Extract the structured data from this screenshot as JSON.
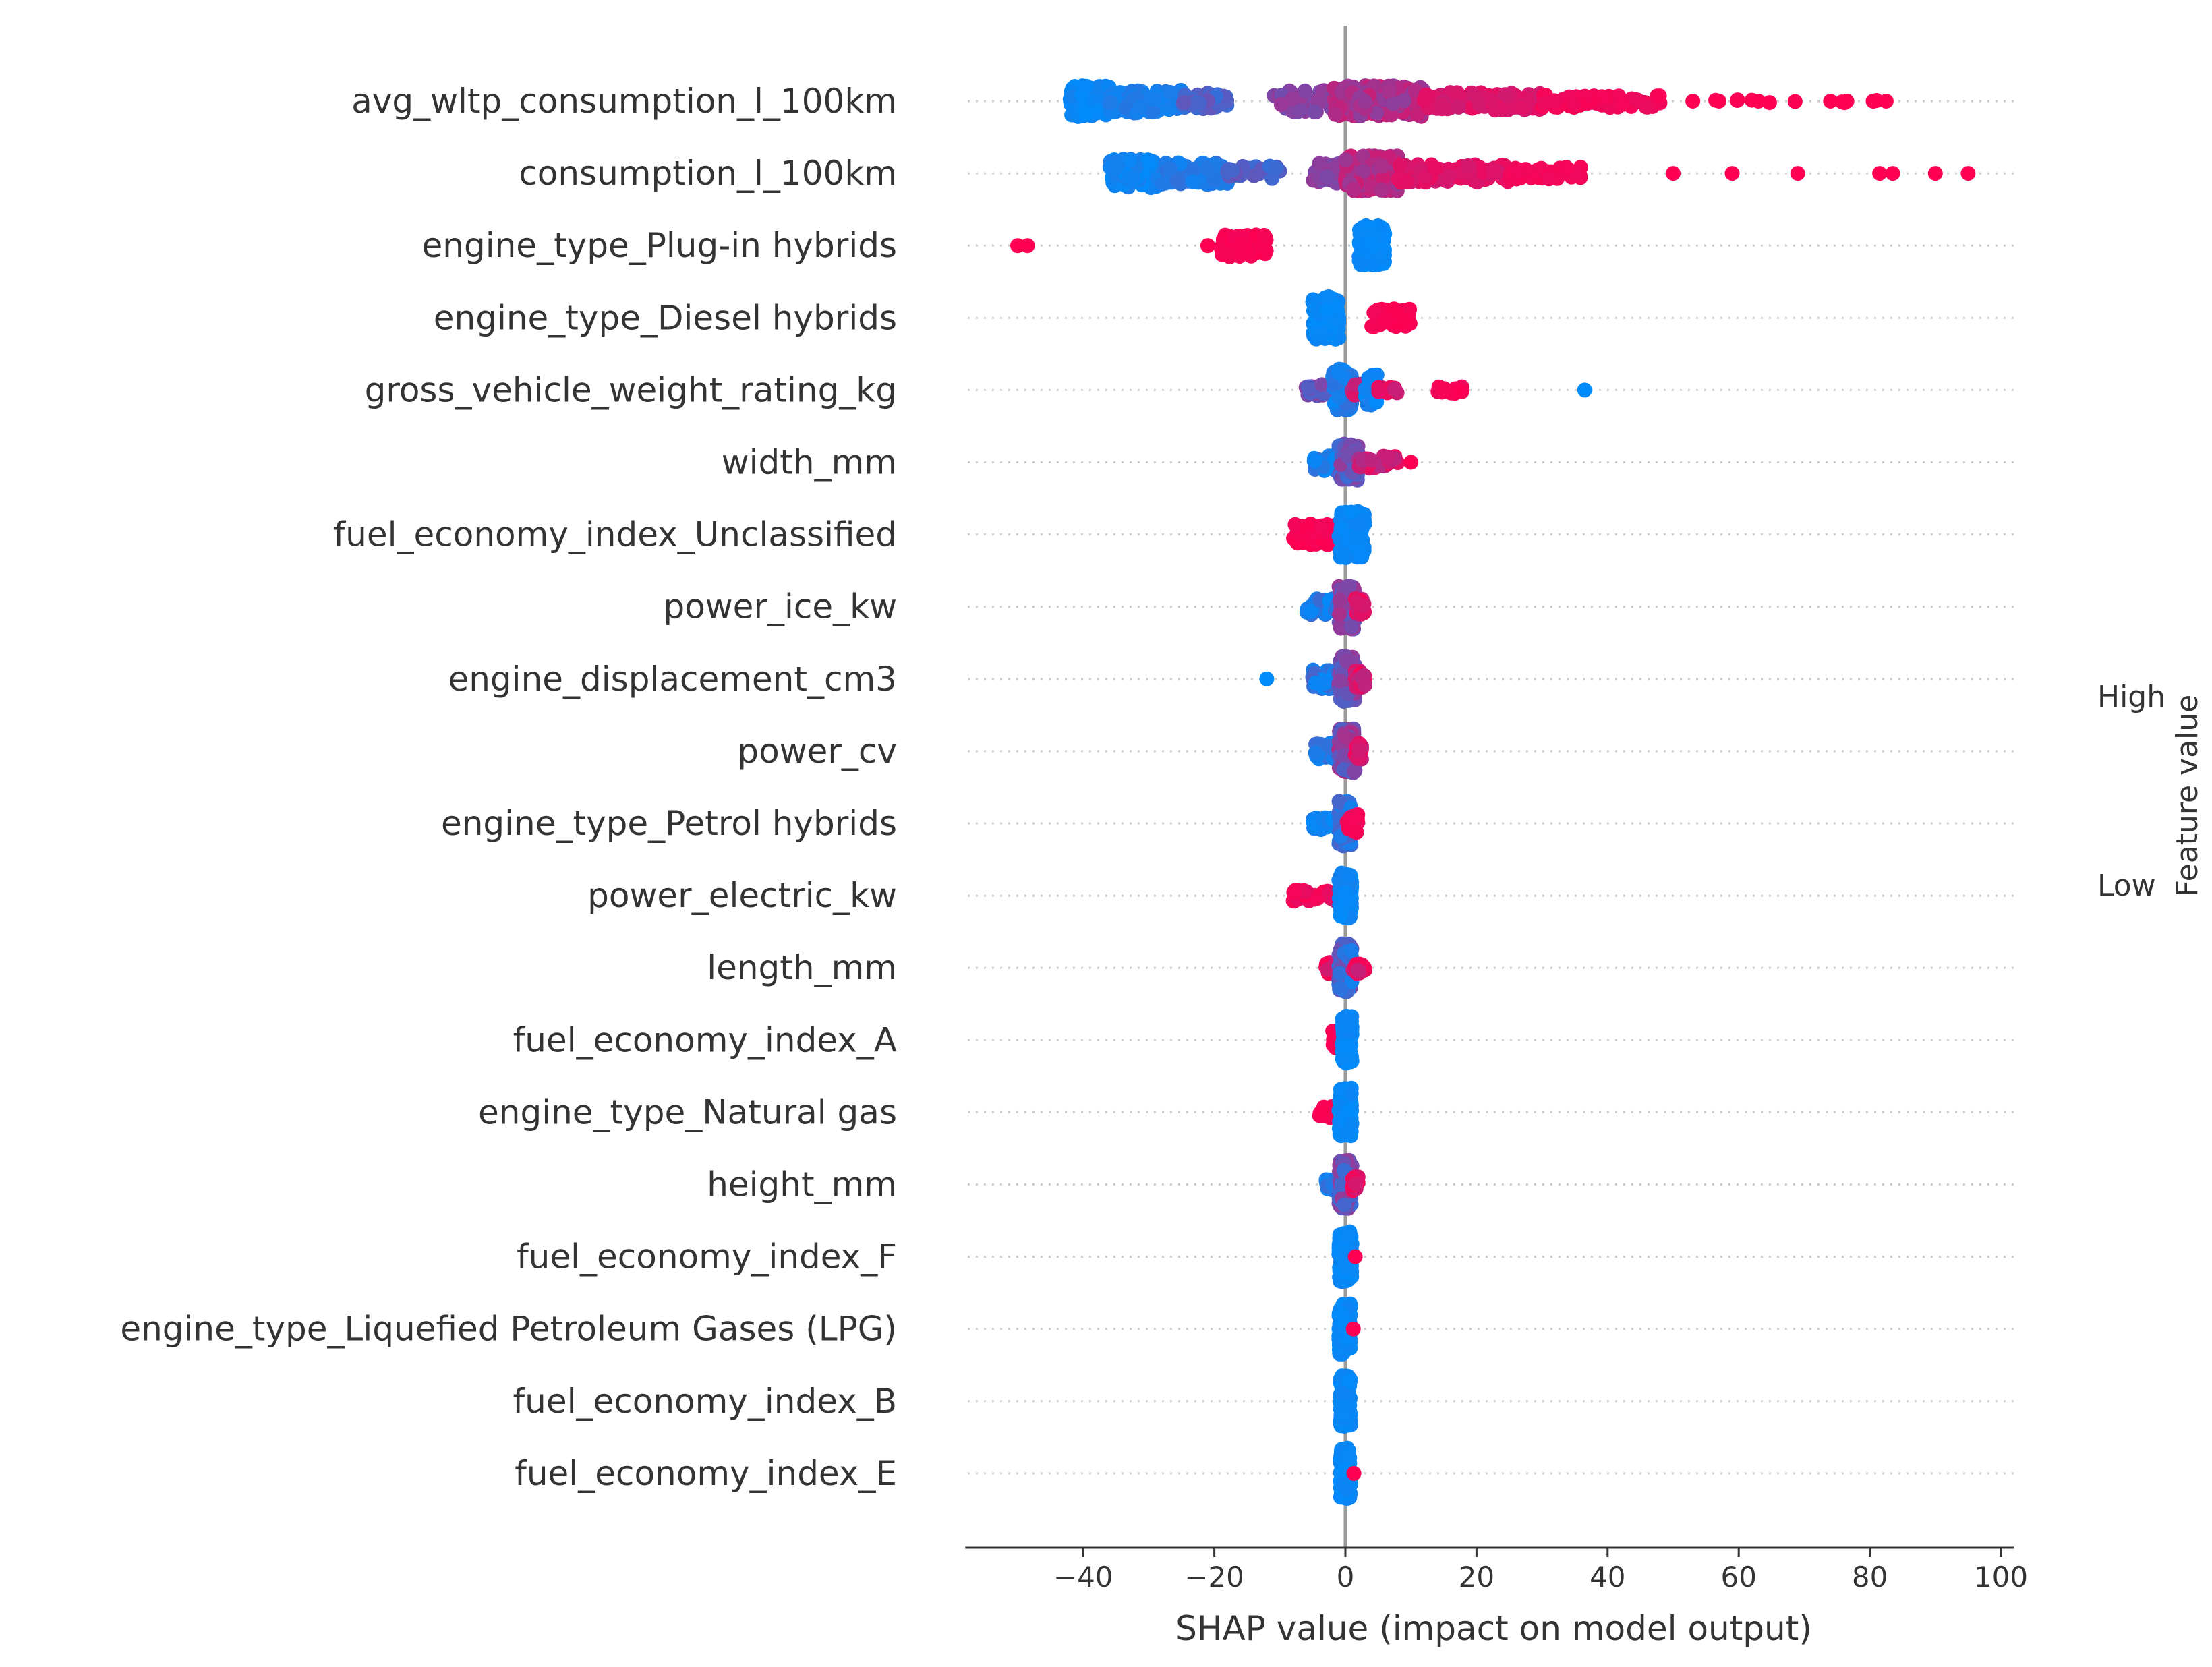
{
  "chart_data": {
    "type": "scatter",
    "subtype": "shap-beeswarm",
    "title": "",
    "xlabel": "SHAP value (impact on model output)",
    "ylabel": "",
    "xlim": [
      -58,
      102
    ],
    "xticks": [
      -40,
      -20,
      0,
      20,
      40,
      60,
      80,
      100
    ],
    "grid": true,
    "colorbar": {
      "label": "Feature value",
      "high_label": "High",
      "low_label": "Low",
      "low_color": "#008bfb",
      "high_color": "#ff0052"
    },
    "features": [
      {
        "name": "avg_wltp_consumption_l_100km",
        "clusters": [
          {
            "from": -42,
            "to": -36,
            "v": [
              0.0,
              0.08
            ],
            "n": 120,
            "spread": 0.55
          },
          {
            "from": -36,
            "to": -25,
            "v": [
              0.05,
              0.15
            ],
            "n": 110,
            "spread": 0.42
          },
          {
            "from": -25,
            "to": -18,
            "v": [
              0.2,
              0.4
            ],
            "n": 45,
            "spread": 0.28
          },
          {
            "from": -11,
            "to": -2,
            "v": [
              0.45,
              0.6
            ],
            "n": 55,
            "spread": 0.38
          },
          {
            "from": -2,
            "to": 12,
            "v": [
              0.55,
              0.8
            ],
            "n": 210,
            "spread": 0.55
          },
          {
            "from": 12,
            "to": 30,
            "v": [
              0.8,
              0.92
            ],
            "n": 120,
            "spread": 0.32
          },
          {
            "from": 30,
            "to": 48,
            "v": [
              0.92,
              0.98
            ],
            "n": 70,
            "spread": 0.22
          },
          {
            "from": 50,
            "to": 84,
            "v": [
              0.98,
              1.0
            ],
            "n": 10,
            "spread": 0.06
          }
        ],
        "points": [
          {
            "x": 53,
            "v": 1
          },
          {
            "x": 57,
            "v": 1
          },
          {
            "x": 63,
            "v": 1
          },
          {
            "x": 74,
            "v": 1
          },
          {
            "x": 76.5,
            "v": 1
          },
          {
            "x": 80.5,
            "v": 1
          },
          {
            "x": 82.5,
            "v": 1
          }
        ]
      },
      {
        "name": "consumption_l_100km",
        "clusters": [
          {
            "from": -36,
            "to": -28,
            "v": [
              0.0,
              0.1
            ],
            "n": 110,
            "spread": 0.5
          },
          {
            "from": -28,
            "to": -18,
            "v": [
              0.05,
              0.2
            ],
            "n": 90,
            "spread": 0.38
          },
          {
            "from": -18,
            "to": -10,
            "v": [
              0.2,
              0.4
            ],
            "n": 35,
            "spread": 0.26
          },
          {
            "from": -5,
            "to": 0,
            "v": [
              0.45,
              0.6
            ],
            "n": 40,
            "spread": 0.35
          },
          {
            "from": 0,
            "to": 8,
            "v": [
              0.6,
              0.82
            ],
            "n": 220,
            "spread": 0.62
          },
          {
            "from": 8,
            "to": 25,
            "v": [
              0.82,
              0.93
            ],
            "n": 110,
            "spread": 0.32
          },
          {
            "from": 25,
            "to": 36,
            "v": [
              0.93,
              0.98
            ],
            "n": 50,
            "spread": 0.22
          }
        ],
        "points": [
          {
            "x": 50,
            "v": 1
          },
          {
            "x": 59,
            "v": 1
          },
          {
            "x": 69,
            "v": 1
          },
          {
            "x": 81.5,
            "v": 1
          },
          {
            "x": 83.5,
            "v": 1
          },
          {
            "x": 90,
            "v": 1
          },
          {
            "x": 95,
            "v": 1
          }
        ]
      },
      {
        "name": "engine_type_Plug-in hybrids",
        "clusters": [
          {
            "from": -19,
            "to": -12,
            "v": [
              0.96,
              1.0
            ],
            "n": 70,
            "spread": 0.4
          },
          {
            "from": 2,
            "to": 6,
            "v": [
              0.0,
              0.04
            ],
            "n": 150,
            "spread": 0.7
          }
        ],
        "points": [
          {
            "x": -50,
            "v": 1
          },
          {
            "x": -48.5,
            "v": 1
          },
          {
            "x": -21,
            "v": 1
          }
        ]
      },
      {
        "name": "engine_type_Diesel hybrids",
        "clusters": [
          {
            "from": -5,
            "to": -1,
            "v": [
              0.0,
              0.05
            ],
            "n": 150,
            "spread": 0.75
          },
          {
            "from": 4,
            "to": 10,
            "v": [
              0.95,
              1.0
            ],
            "n": 60,
            "spread": 0.32
          }
        ],
        "points": []
      },
      {
        "name": "gross_vehicle_weight_rating_kg",
        "clusters": [
          {
            "from": -6,
            "to": -2,
            "v": [
              0.3,
              0.6
            ],
            "n": 40,
            "spread": 0.2
          },
          {
            "from": -2,
            "to": 1,
            "v": [
              0.0,
              0.2
            ],
            "n": 90,
            "spread": 0.75
          },
          {
            "from": 1,
            "to": 5,
            "v": [
              0.6,
              0.9
            ],
            "n": 40,
            "spread": 0.22
          },
          {
            "from": 3,
            "to": 5,
            "v": [
              0.0,
              0.1
            ],
            "n": 25,
            "spread": 0.55
          },
          {
            "from": 5,
            "to": 8,
            "v": [
              0.75,
              0.95
            ],
            "n": 10,
            "spread": 0.1
          },
          {
            "from": 14,
            "to": 18,
            "v": [
              0.95,
              1.0
            ],
            "n": 15,
            "spread": 0.12
          }
        ],
        "points": [
          {
            "x": 36.5,
            "v": 0
          }
        ]
      },
      {
        "name": "width_mm",
        "clusters": [
          {
            "from": -5,
            "to": -1,
            "v": [
              0.0,
              0.2
            ],
            "n": 55,
            "spread": 0.3
          },
          {
            "from": -1,
            "to": 2,
            "v": [
              0.2,
              0.6
            ],
            "n": 90,
            "spread": 0.65
          },
          {
            "from": 2,
            "to": 8,
            "v": [
              0.65,
              0.95
            ],
            "n": 35,
            "spread": 0.22
          }
        ],
        "points": [
          {
            "x": 10,
            "v": 1
          }
        ]
      },
      {
        "name": "fuel_economy_index_Unclassified",
        "clusters": [
          {
            "from": -8,
            "to": -1,
            "v": [
              0.95,
              1.0
            ],
            "n": 60,
            "spread": 0.38
          },
          {
            "from": -1,
            "to": 3,
            "v": [
              0.0,
              0.05
            ],
            "n": 140,
            "spread": 0.82
          }
        ],
        "points": []
      },
      {
        "name": "power_ice_kw",
        "clusters": [
          {
            "from": -6,
            "to": -1,
            "v": [
              0.0,
              0.25
            ],
            "n": 50,
            "spread": 0.28
          },
          {
            "from": -1,
            "to": 1.5,
            "v": [
              0.3,
              0.7
            ],
            "n": 120,
            "spread": 0.8
          },
          {
            "from": 1.5,
            "to": 3,
            "v": [
              0.75,
              1.0
            ],
            "n": 25,
            "spread": 0.28
          }
        ],
        "points": []
      },
      {
        "name": "engine_displacement_cm3",
        "clusters": [
          {
            "from": -5,
            "to": -1,
            "v": [
              0.0,
              0.3
            ],
            "n": 50,
            "spread": 0.35
          },
          {
            "from": -1,
            "to": 1.5,
            "v": [
              0.3,
              0.65
            ],
            "n": 120,
            "spread": 0.8
          },
          {
            "from": 1.5,
            "to": 3,
            "v": [
              0.7,
              1.0
            ],
            "n": 30,
            "spread": 0.3
          }
        ],
        "points": [
          {
            "x": -12,
            "v": 0
          }
        ]
      },
      {
        "name": "power_cv",
        "clusters": [
          {
            "from": -5,
            "to": -1,
            "v": [
              0.0,
              0.25
            ],
            "n": 45,
            "spread": 0.28
          },
          {
            "from": -1,
            "to": 1.5,
            "v": [
              0.3,
              0.7
            ],
            "n": 120,
            "spread": 0.8
          },
          {
            "from": 1.5,
            "to": 2.5,
            "v": [
              0.7,
              1.0
            ],
            "n": 25,
            "spread": 0.28
          }
        ],
        "points": []
      },
      {
        "name": "engine_type_Petrol hybrids",
        "clusters": [
          {
            "from": -5,
            "to": -1,
            "v": [
              0.0,
              0.1
            ],
            "n": 40,
            "spread": 0.22
          },
          {
            "from": -1,
            "to": 1,
            "v": [
              0.05,
              0.3
            ],
            "n": 120,
            "spread": 0.8
          },
          {
            "from": 0,
            "to": 2,
            "v": [
              0.9,
              1.0
            ],
            "n": 25,
            "spread": 0.32
          }
        ],
        "points": []
      },
      {
        "name": "power_electric_kw",
        "clusters": [
          {
            "from": -8,
            "to": -1,
            "v": [
              0.9,
              1.0
            ],
            "n": 30,
            "spread": 0.2
          },
          {
            "from": -1,
            "to": 1,
            "v": [
              0.0,
              0.08
            ],
            "n": 140,
            "spread": 0.8
          }
        ],
        "points": []
      },
      {
        "name": "length_mm",
        "clusters": [
          {
            "from": -3,
            "to": -1,
            "v": [
              0.8,
              1.0
            ],
            "n": 20,
            "spread": 0.2
          },
          {
            "from": -1,
            "to": 1,
            "v": [
              0.0,
              0.5
            ],
            "n": 130,
            "spread": 0.85
          },
          {
            "from": 1,
            "to": 3,
            "v": [
              0.7,
              1.0
            ],
            "n": 20,
            "spread": 0.22
          }
        ],
        "points": []
      },
      {
        "name": "fuel_economy_index_A",
        "clusters": [
          {
            "from": -2,
            "to": -0.5,
            "v": [
              0.95,
              1.0
            ],
            "n": 25,
            "spread": 0.32
          },
          {
            "from": -0.5,
            "to": 1,
            "v": [
              0.0,
              0.05
            ],
            "n": 140,
            "spread": 0.85
          }
        ],
        "points": []
      },
      {
        "name": "engine_type_Natural gas",
        "clusters": [
          {
            "from": -4,
            "to": -1,
            "v": [
              0.95,
              1.0
            ],
            "n": 20,
            "spread": 0.2
          },
          {
            "from": -1,
            "to": 1,
            "v": [
              0.0,
              0.05
            ],
            "n": 140,
            "spread": 0.85
          }
        ],
        "points": []
      },
      {
        "name": "height_mm",
        "clusters": [
          {
            "from": -3,
            "to": -1,
            "v": [
              0.0,
              0.2
            ],
            "n": 25,
            "spread": 0.2
          },
          {
            "from": -1,
            "to": 1,
            "v": [
              0.2,
              0.6
            ],
            "n": 130,
            "spread": 0.85
          },
          {
            "from": 1,
            "to": 2,
            "v": [
              0.8,
              1.0
            ],
            "n": 20,
            "spread": 0.28
          }
        ],
        "points": []
      },
      {
        "name": "fuel_economy_index_F",
        "clusters": [
          {
            "from": -1,
            "to": 1,
            "v": [
              0.0,
              0.05
            ],
            "n": 150,
            "spread": 0.9
          }
        ],
        "points": [
          {
            "x": 1.5,
            "v": 1
          }
        ]
      },
      {
        "name": "engine_type_Liquefied Petroleum Gases (LPG)",
        "clusters": [
          {
            "from": -1,
            "to": 0.8,
            "v": [
              0.0,
              0.05
            ],
            "n": 150,
            "spread": 0.9
          }
        ],
        "points": [
          {
            "x": 1.2,
            "v": 1
          }
        ]
      },
      {
        "name": "fuel_economy_index_B",
        "clusters": [
          {
            "from": -0.8,
            "to": 0.8,
            "v": [
              0.0,
              0.05
            ],
            "n": 150,
            "spread": 0.9
          }
        ],
        "points": []
      },
      {
        "name": "fuel_economy_index_E",
        "clusters": [
          {
            "from": -0.8,
            "to": 0.8,
            "v": [
              0.0,
              0.05
            ],
            "n": 150,
            "spread": 0.9
          }
        ],
        "points": [
          {
            "x": 1.3,
            "v": 1
          }
        ]
      }
    ]
  }
}
